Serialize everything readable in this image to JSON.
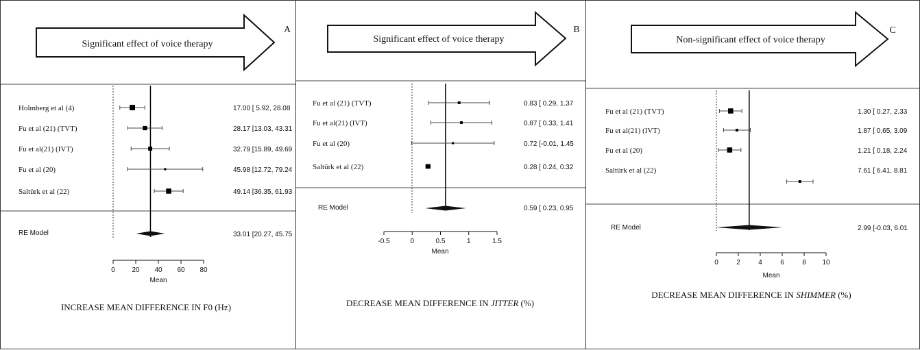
{
  "chart_data": [
    {
      "type": "forest",
      "panel_letter": "A",
      "arrow_text": "Significant effect of voice therapy",
      "caption": "INCREASE MEAN DIFFERENCE IN F0 (Hz)",
      "xlabel": "Mean",
      "xlim": [
        0,
        80
      ],
      "xticks": [
        "0",
        "20",
        "40",
        "60",
        "80"
      ],
      "summary_line": 33.01,
      "studies": [
        {
          "label": "Holmberg et al (4)",
          "mean": 17.0,
          "lo": 5.92,
          "hi": 28.08,
          "ci_text": "17.00 [ 5.92, 28.08",
          "weight": 0.8
        },
        {
          "label": "Fu et al (21) (TVT)",
          "mean": 28.17,
          "lo": 13.03,
          "hi": 43.31,
          "ci_text": "28.17 [13.03, 43.31",
          "weight": 0.6
        },
        {
          "label": "Fu et al(21) (IVT)",
          "mean": 32.79,
          "lo": 15.89,
          "hi": 49.69,
          "ci_text": "32.79 [15.89, 49.69",
          "weight": 0.55
        },
        {
          "label": "Fu et al (20)",
          "mean": 45.98,
          "lo": 12.72,
          "hi": 79.24,
          "ci_text": "45.98 [12.72, 79.24",
          "weight": 0.2
        },
        {
          "label": "Saltürk et al (22)",
          "mean": 49.14,
          "lo": 36.35,
          "hi": 61.93,
          "ci_text": "49.14 [36.35, 61.93",
          "weight": 0.75
        }
      ],
      "model": {
        "label": "RE Model",
        "mean": 33.01,
        "lo": 20.27,
        "hi": 45.75,
        "ci_text": "33.01 [20.27, 45.75"
      }
    },
    {
      "type": "forest",
      "panel_letter": "B",
      "arrow_text": "Significant effect of voice therapy",
      "caption_prefix": "DECREASE MEAN DIFFERENCE IN ",
      "caption_italic": "JITTER",
      "caption_suffix": " (%)",
      "xlabel": "Mean",
      "xlim": [
        -0.5,
        1.5
      ],
      "xticks": [
        "-0.5",
        "0",
        "0.5",
        "1",
        "1.5"
      ],
      "summary_line": 0.59,
      "studies": [
        {
          "label": "Fu et al (21) (TVT)",
          "mean": 0.83,
          "lo": 0.29,
          "hi": 1.37,
          "ci_text": "0.83 [ 0.29, 1.37",
          "weight": 0.3
        },
        {
          "label": "Fu et al(21) (IVT)",
          "mean": 0.87,
          "lo": 0.33,
          "hi": 1.41,
          "ci_text": "0.87 [ 0.33, 1.41",
          "weight": 0.3
        },
        {
          "label": "Fu et al (20)",
          "mean": 0.72,
          "lo": -0.01,
          "hi": 1.45,
          "ci_text": "0.72 [-0.01, 1.45",
          "weight": 0.2
        },
        {
          "label": "Saltürk et al (22)",
          "mean": 0.28,
          "lo": 0.24,
          "hi": 0.32,
          "ci_text": "0.28 [ 0.24, 0.32",
          "weight": 0.65
        }
      ],
      "model": {
        "label": "RE Model",
        "mean": 0.59,
        "lo": 0.23,
        "hi": 0.95,
        "ci_text": "0.59 [ 0.23, 0.95"
      }
    },
    {
      "type": "forest",
      "panel_letter": "C",
      "arrow_text": "Non-significant effect of voice therapy",
      "caption_prefix": "DECREASE MEAN DIFFERENCE IN ",
      "caption_italic": "SHIMMER",
      "caption_suffix": "  (%)",
      "xlabel": "Mean",
      "xlim": [
        0,
        10
      ],
      "xticks": [
        "0",
        "2",
        "4",
        "6",
        "8",
        "10"
      ],
      "summary_line": 2.99,
      "studies": [
        {
          "label": "Fu et al (21) (TVT)",
          "mean": 1.3,
          "lo": 0.27,
          "hi": 2.33,
          "ci_text": "1.30 [ 0.27, 2.33",
          "weight": 0.75
        },
        {
          "label": "Fu et al(21) (IVT)",
          "mean": 1.87,
          "lo": 0.65,
          "hi": 3.09,
          "ci_text": "1.87 [ 0.65, 3.09",
          "weight": 0.3
        },
        {
          "label": "Fu et al (20)",
          "mean": 1.21,
          "lo": 0.18,
          "hi": 2.24,
          "ci_text": "1.21 [ 0.18, 2.24",
          "weight": 0.75
        },
        {
          "label": "Saltürk et al (22)",
          "mean": 7.61,
          "lo": 6.41,
          "hi": 8.81,
          "ci_text": "7.61 [ 6.41, 8.81",
          "weight": 0.3
        }
      ],
      "model": {
        "label": "RE Model",
        "mean": 2.99,
        "lo": -0.03,
        "hi": 6.01,
        "ci_text": "2.99 [-0.03, 6.01"
      }
    }
  ]
}
